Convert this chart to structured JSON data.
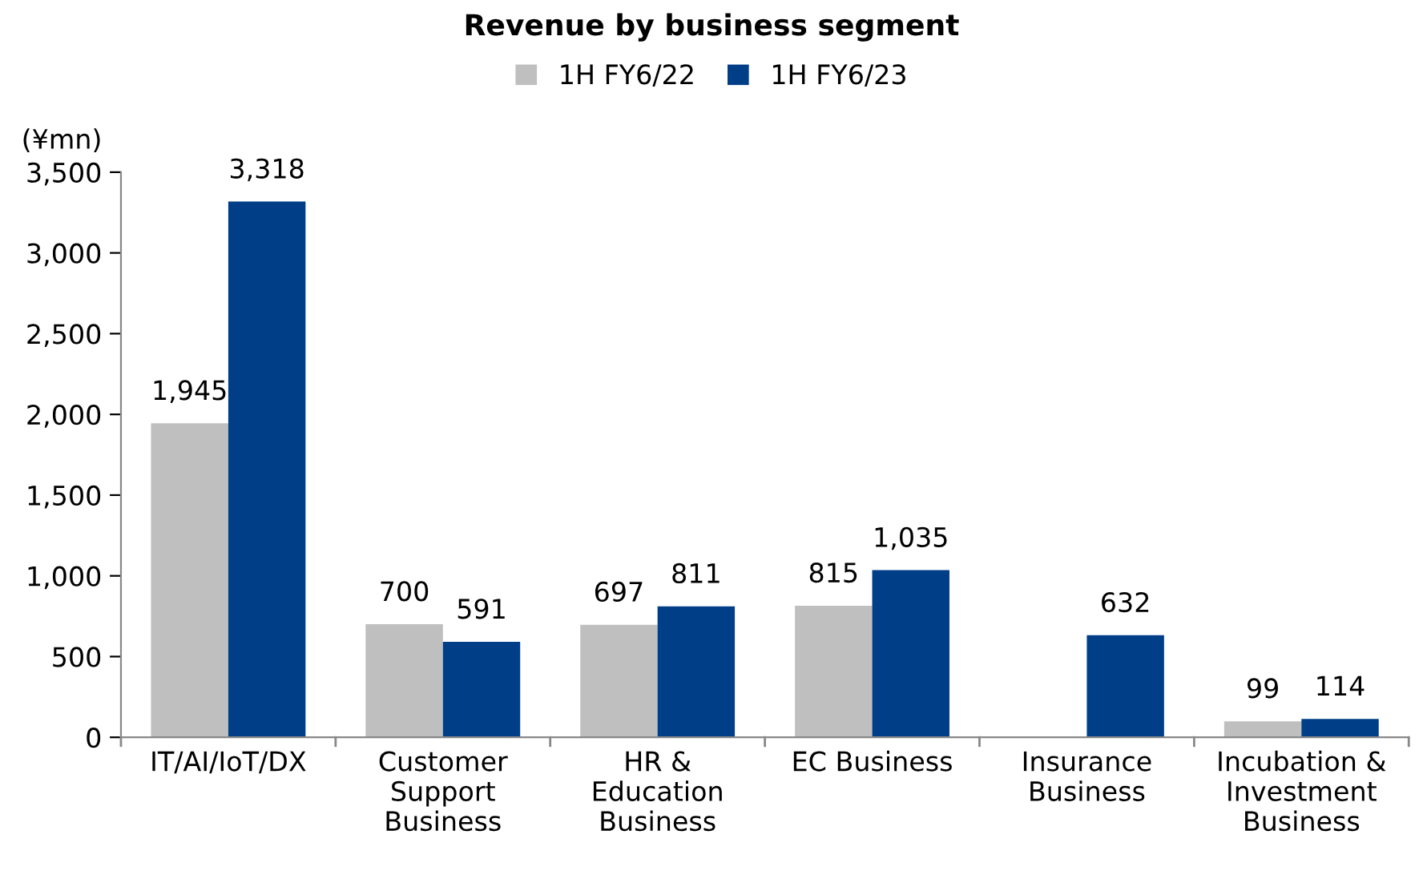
{
  "chart_data": {
    "type": "bar",
    "title": "Revenue by business segment",
    "ylabel": "(¥mn)",
    "categories": [
      "IT/AI/IoT/DX",
      "Customer\nSupport\nBusiness",
      "HR &\nEducation\nBusiness",
      "EC Business",
      "Insurance\nBusiness",
      "Incubation &\nInvestment\nBusiness"
    ],
    "series": [
      {
        "name": "1H FY6/22",
        "color": "#bfbfbf",
        "values": [
          1945,
          700,
          697,
          815,
          null,
          99
        ],
        "value_labels": [
          "1,945",
          "700",
          "697",
          "815",
          null,
          "99"
        ]
      },
      {
        "name": "1H FY6/23",
        "color": "#003f87",
        "values": [
          3318,
          591,
          811,
          1035,
          632,
          114
        ],
        "value_labels": [
          "3,318",
          "591",
          "811",
          "1,035",
          "632",
          "114"
        ]
      }
    ],
    "ylim": [
      0,
      3500
    ],
    "yticks": [
      0,
      {
        "value": 500,
        "label": "500"
      },
      {
        "value": 1000,
        "label": "1,000"
      },
      {
        "value": 1500,
        "label": "1,500"
      },
      {
        "value": 2000,
        "label": "2,000"
      },
      {
        "value": 2500,
        "label": "2,500"
      },
      {
        "value": 3000,
        "label": "3,000"
      },
      {
        "value": 3500,
        "label": "3,500"
      }
    ],
    "grid": false,
    "legend": "top"
  }
}
